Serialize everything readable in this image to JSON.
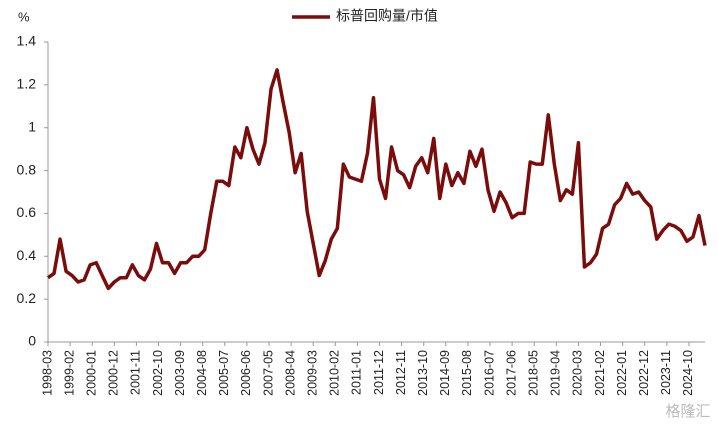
{
  "chart_data": {
    "type": "line",
    "y_label": "%",
    "watermark": "格隆汇",
    "x": [
      "1998-03",
      "1998-06",
      "1998-09",
      "1998-12",
      "1999-03",
      "1999-06",
      "1999-09",
      "1999-12",
      "2000-03",
      "2000-06",
      "2000-09",
      "2000-12",
      "2001-03",
      "2001-06",
      "2001-09",
      "2001-12",
      "2002-03",
      "2002-06",
      "2002-09",
      "2002-12",
      "2003-03",
      "2003-06",
      "2003-09",
      "2003-12",
      "2004-03",
      "2004-06",
      "2004-09",
      "2004-12",
      "2005-03",
      "2005-06",
      "2005-09",
      "2005-12",
      "2006-03",
      "2006-06",
      "2006-09",
      "2006-12",
      "2007-03",
      "2007-06",
      "2007-09",
      "2007-12",
      "2008-03",
      "2008-06",
      "2008-09",
      "2008-12",
      "2009-03",
      "2009-06",
      "2009-09",
      "2009-12",
      "2010-03",
      "2010-06",
      "2010-09",
      "2010-12",
      "2011-03",
      "2011-06",
      "2011-09",
      "2011-12",
      "2012-03",
      "2012-06",
      "2012-09",
      "2012-12",
      "2013-03",
      "2013-06",
      "2013-09",
      "2013-12",
      "2014-03",
      "2014-06",
      "2014-09",
      "2014-12",
      "2015-03",
      "2015-06",
      "2015-09",
      "2015-12",
      "2016-03",
      "2016-06",
      "2016-09",
      "2016-12",
      "2017-03",
      "2017-06",
      "2017-09",
      "2017-12",
      "2018-03",
      "2018-06",
      "2018-09",
      "2018-12",
      "2019-03",
      "2019-06",
      "2019-09",
      "2019-12",
      "2020-03",
      "2020-06",
      "2020-09",
      "2020-12",
      "2021-03",
      "2021-06",
      "2021-09",
      "2021-12",
      "2022-03",
      "2022-06",
      "2022-09",
      "2022-12",
      "2023-03",
      "2023-06",
      "2023-09",
      "2023-12",
      "2024-03",
      "2024-06",
      "2024-09",
      "2024-12",
      "2025-03",
      "2025-06"
    ],
    "series": [
      {
        "name": "标普回购量/市值",
        "color": "#7b0c0c",
        "values": [
          0.3,
          0.32,
          0.48,
          0.33,
          0.31,
          0.28,
          0.29,
          0.36,
          0.37,
          0.31,
          0.25,
          0.28,
          0.3,
          0.3,
          0.36,
          0.31,
          0.29,
          0.34,
          0.46,
          0.37,
          0.37,
          0.32,
          0.37,
          0.37,
          0.4,
          0.4,
          0.43,
          0.6,
          0.75,
          0.75,
          0.73,
          0.91,
          0.86,
          1.0,
          0.9,
          0.83,
          0.93,
          1.18,
          1.27,
          1.12,
          0.98,
          0.79,
          0.88,
          0.61,
          0.46,
          0.31,
          0.38,
          0.48,
          0.53,
          0.83,
          0.77,
          0.76,
          0.75,
          0.88,
          1.14,
          0.76,
          0.67,
          0.91,
          0.8,
          0.78,
          0.72,
          0.82,
          0.86,
          0.79,
          0.95,
          0.67,
          0.83,
          0.73,
          0.79,
          0.74,
          0.89,
          0.82,
          0.9,
          0.71,
          0.61,
          0.7,
          0.65,
          0.58,
          0.6,
          0.6,
          0.84,
          0.83,
          0.83,
          1.06,
          0.83,
          0.66,
          0.71,
          0.69,
          0.93,
          0.35,
          0.37,
          0.41,
          0.53,
          0.55,
          0.64,
          0.67,
          0.74,
          0.69,
          0.7,
          0.66,
          0.63,
          0.48,
          0.52,
          0.55,
          0.54,
          0.52,
          0.47,
          0.49,
          0.59,
          0.45
        ]
      }
    ],
    "ylim": [
      0,
      1.4
    ],
    "yticks": [
      0,
      0.2,
      0.4,
      0.6,
      0.8,
      1,
      1.2,
      1.4
    ],
    "xlim": [
      "1998-03",
      "2025-06"
    ],
    "xticks": [
      "1998-03",
      "1999-02",
      "2000-01",
      "2000-12",
      "2001-11",
      "2002-10",
      "2003-09",
      "2004-08",
      "2005-07",
      "2006-06",
      "2007-05",
      "2008-04",
      "2009-03",
      "2010-02",
      "2011-01",
      "2011-12",
      "2012-11",
      "2013-10",
      "2014-09",
      "2015-08",
      "2016-07",
      "2017-06",
      "2018-05",
      "2019-04",
      "2020-03",
      "2021-02",
      "2022-01",
      "2022-12",
      "2023-11",
      "2024-10"
    ],
    "grid": false,
    "legend": "top"
  }
}
